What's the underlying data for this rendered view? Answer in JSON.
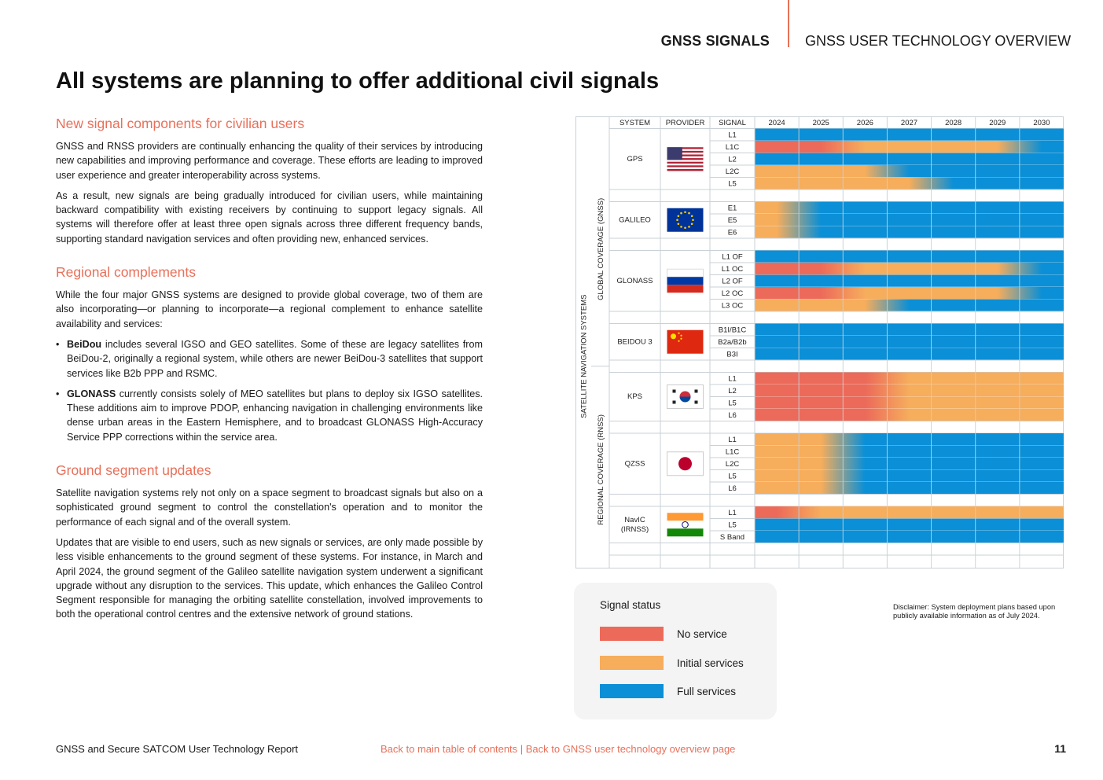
{
  "header": {
    "section": "GNSS SIGNALS",
    "document": "GNSS USER TECHNOLOGY OVERVIEW"
  },
  "title": "All systems are planning to offer additional civil signals",
  "sections": {
    "s1": {
      "heading": "New signal components for civilian users",
      "p1": "GNSS and RNSS providers are continually enhancing the quality of their services by introducing new capabilities and improving performance and coverage. These efforts are leading to improved user experience and greater interoperability across systems.",
      "p2": "As a result, new signals are being gradually introduced for civilian users, while maintaining backward compatibility with existing receivers by continuing to support legacy signals. All systems will therefore offer at least three open signals across three different frequency bands, supporting standard navigation services and often providing new, enhanced services."
    },
    "s2": {
      "heading": "Regional complements",
      "p1": "While the four major GNSS systems are designed to provide global coverage, two of them are also incorporating—or planning to incorporate—a regional complement to enhance satellite availability and services:",
      "b1_bold": "BeiDou",
      "b1_text": " includes several IGSO and GEO satellites. Some of these are legacy satellites from BeiDou-2, originally a regional system, while others are newer BeiDou-3 satellites that support services like B2b PPP and RSMC.",
      "b2_bold": "GLONASS",
      "b2_text": " currently consists solely of MEO satellites but plans to deploy six IGSO satellites. These additions aim to improve PDOP, enhancing navigation in challenging environments like dense urban areas in the Eastern Hemisphere, and to broadcast GLONASS High-Accuracy Service PPP corrections within the service area."
    },
    "s3": {
      "heading": "Ground segment updates",
      "p1": "Satellite navigation systems rely not only on a space segment to broadcast signals but also on a sophisticated ground segment to control the constellation's operation and to monitor the performance of each signal and of the overall system.",
      "p2": "Updates that are visible to end users, such as new signals or services, are only made possible by less visible enhancements to the ground segment of these systems. For instance, in March and April 2024, the ground segment of the Galileo satellite navigation system underwent a significant upgrade without any disruption to the services. This update, which enhances the Galileo Control Segment responsible for managing the orbiting satellite constellation, involved improvements to both the operational control centres and the extensive network of ground stations."
    }
  },
  "colors": {
    "accent": "#e8705a",
    "no_service": "#ec6a5a",
    "initial_services": "#f6ad5c",
    "full_services": "#0b8fd6"
  },
  "chart_data": {
    "type": "table",
    "headers": {
      "system": "SYSTEM",
      "provider": "PROVIDER",
      "signal": "SIGNAL"
    },
    "years": [
      "2024",
      "2025",
      "2026",
      "2027",
      "2028",
      "2029",
      "2030"
    ],
    "group_label": "SATELLITE NAVIGATION SYSTEMS",
    "subgroups": [
      {
        "label": "GLOBAL COVERAGE (GNSS)",
        "systems": [
          "GPS",
          "GALILEO",
          "GLONASS",
          "BEIDOU 3"
        ]
      },
      {
        "label": "REGIONAL COVERAGE (RNSS)",
        "systems": [
          "KPS",
          "QZSS",
          "NavIC (IRNSS)"
        ]
      }
    ],
    "status_key": {
      "N": "No service",
      "I": "Initial services",
      "F": "Full services"
    },
    "systems": [
      {
        "name": "GPS",
        "flag": "us-flag-icon",
        "signals": [
          {
            "name": "L1",
            "status": [
              "F",
              "F",
              "F",
              "F",
              "F",
              "F",
              "F"
            ]
          },
          {
            "name": "L1C",
            "status": [
              "N",
              "N",
              "I",
              "I",
              "I",
              "I",
              "F"
            ]
          },
          {
            "name": "L2",
            "status": [
              "F",
              "F",
              "F",
              "F",
              "F",
              "F",
              "F"
            ]
          },
          {
            "name": "L2C",
            "status": [
              "I",
              "I",
              "I",
              "F",
              "F",
              "F",
              "F"
            ]
          },
          {
            "name": "L5",
            "status": [
              "I",
              "I",
              "I",
              "I",
              "F",
              "F",
              "F"
            ]
          }
        ]
      },
      {
        "name": "GALILEO",
        "flag": "eu-flag-icon",
        "signals": [
          {
            "name": "E1",
            "status": [
              "I",
              "F",
              "F",
              "F",
              "F",
              "F",
              "F"
            ]
          },
          {
            "name": "E5",
            "status": [
              "I",
              "F",
              "F",
              "F",
              "F",
              "F",
              "F"
            ]
          },
          {
            "name": "E6",
            "status": [
              "I",
              "F",
              "F",
              "F",
              "F",
              "F",
              "F"
            ]
          }
        ]
      },
      {
        "name": "GLONASS",
        "flag": "ru-flag-icon",
        "signals": [
          {
            "name": "L1 OF",
            "status": [
              "F",
              "F",
              "F",
              "F",
              "F",
              "F",
              "F"
            ]
          },
          {
            "name": "L1 OC",
            "status": [
              "N",
              "N",
              "I",
              "I",
              "I",
              "I",
              "F"
            ]
          },
          {
            "name": "L2 OF",
            "status": [
              "F",
              "F",
              "F",
              "F",
              "F",
              "F",
              "F"
            ]
          },
          {
            "name": "L2 OC",
            "status": [
              "N",
              "N",
              "I",
              "I",
              "I",
              "I",
              "F"
            ]
          },
          {
            "name": "L3 OC",
            "status": [
              "I",
              "I",
              "I",
              "F",
              "F",
              "F",
              "F"
            ]
          }
        ]
      },
      {
        "name": "BEIDOU 3",
        "flag": "cn-flag-icon",
        "signals": [
          {
            "name": "B1I/B1C",
            "status": [
              "F",
              "F",
              "F",
              "F",
              "F",
              "F",
              "F"
            ]
          },
          {
            "name": "B2a/B2b",
            "status": [
              "F",
              "F",
              "F",
              "F",
              "F",
              "F",
              "F"
            ]
          },
          {
            "name": "B3I",
            "status": [
              "F",
              "F",
              "F",
              "F",
              "F",
              "F",
              "F"
            ]
          }
        ]
      },
      {
        "name": "KPS",
        "flag": "kr-flag-icon",
        "signals": [
          {
            "name": "L1",
            "status": [
              "N",
              "N",
              "N",
              "I",
              "I",
              "I",
              "I"
            ]
          },
          {
            "name": "L2",
            "status": [
              "N",
              "N",
              "N",
              "I",
              "I",
              "I",
              "I"
            ]
          },
          {
            "name": "L5",
            "status": [
              "N",
              "N",
              "N",
              "I",
              "I",
              "I",
              "I"
            ]
          },
          {
            "name": "L6",
            "status": [
              "N",
              "N",
              "N",
              "I",
              "I",
              "I",
              "I"
            ]
          }
        ]
      },
      {
        "name": "QZSS",
        "flag": "jp-flag-icon",
        "signals": [
          {
            "name": "L1",
            "status": [
              "I",
              "I",
              "F",
              "F",
              "F",
              "F",
              "F"
            ]
          },
          {
            "name": "L1C",
            "status": [
              "I",
              "I",
              "F",
              "F",
              "F",
              "F",
              "F"
            ]
          },
          {
            "name": "L2C",
            "status": [
              "I",
              "I",
              "F",
              "F",
              "F",
              "F",
              "F"
            ]
          },
          {
            "name": "L5",
            "status": [
              "I",
              "I",
              "F",
              "F",
              "F",
              "F",
              "F"
            ]
          },
          {
            "name": "L6",
            "status": [
              "I",
              "I",
              "F",
              "F",
              "F",
              "F",
              "F"
            ]
          }
        ]
      },
      {
        "name": "NavIC (IRNSS)",
        "flag": "in-flag-icon",
        "signals": [
          {
            "name": "L1",
            "status": [
              "N",
              "I",
              "I",
              "I",
              "I",
              "I",
              "I"
            ]
          },
          {
            "name": "L5",
            "status": [
              "F",
              "F",
              "F",
              "F",
              "F",
              "F",
              "F"
            ]
          },
          {
            "name": "S Band",
            "status": [
              "F",
              "F",
              "F",
              "F",
              "F",
              "F",
              "F"
            ]
          }
        ]
      }
    ]
  },
  "legend": {
    "title": "Signal status",
    "items": [
      "No service",
      "Initial services",
      "Full services"
    ]
  },
  "disclaimer": "Disclaimer: System deployment plans based upon publicly available information as of July 2024.",
  "footer": {
    "report": "GNSS and Secure SATCOM User Technology Report",
    "link_toc": "Back to main table of contents",
    "separator": " | ",
    "link_overview": "Back to GNSS user technology overview page",
    "page": "11"
  }
}
